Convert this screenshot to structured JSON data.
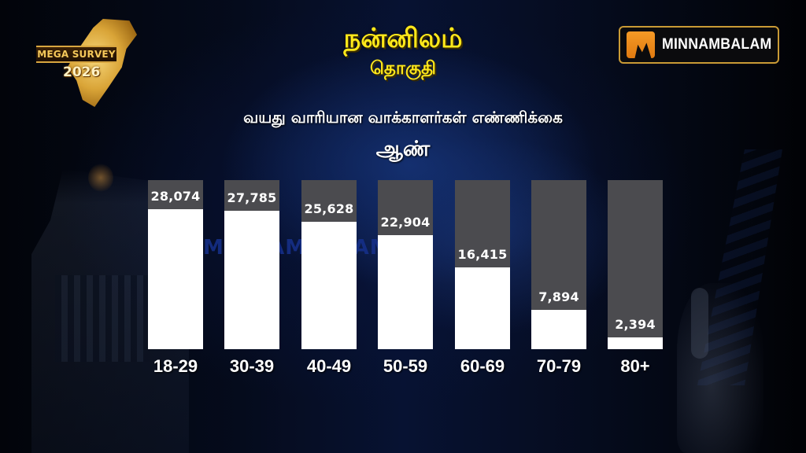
{
  "header": {
    "constituency": "நன்னிலம்",
    "constituency_suffix": "தொகுதி",
    "logo_left": {
      "title": "MEGA SURVEY",
      "year": "2026"
    },
    "brand": {
      "name": "MINNAMBALAM",
      "accent": "#F59A26",
      "border": "#C99A35"
    }
  },
  "watermark": "MINNAMBALAM",
  "chart_data": {
    "type": "bar",
    "title": "வயது வாரியான வாக்காளர்கள் எண்ணிக்கை",
    "subtitle": "ஆண்",
    "xlabel": "",
    "ylabel": "",
    "categories": [
      "18-29",
      "30-39",
      "40-49",
      "50-59",
      "60-69",
      "70-79",
      "80+"
    ],
    "values": [
      28074,
      27785,
      25628,
      22904,
      16415,
      7894,
      2394
    ],
    "value_labels": [
      "28,074",
      "27,785",
      "25,628",
      "22,904",
      "16,415",
      "7,894",
      "2,394"
    ],
    "ylim": [
      0,
      34000
    ],
    "grid": false,
    "legend": "none",
    "colors": {
      "bar": "#FFFFFF",
      "track": "#4B4B4F",
      "title": "#FFE81A"
    }
  }
}
